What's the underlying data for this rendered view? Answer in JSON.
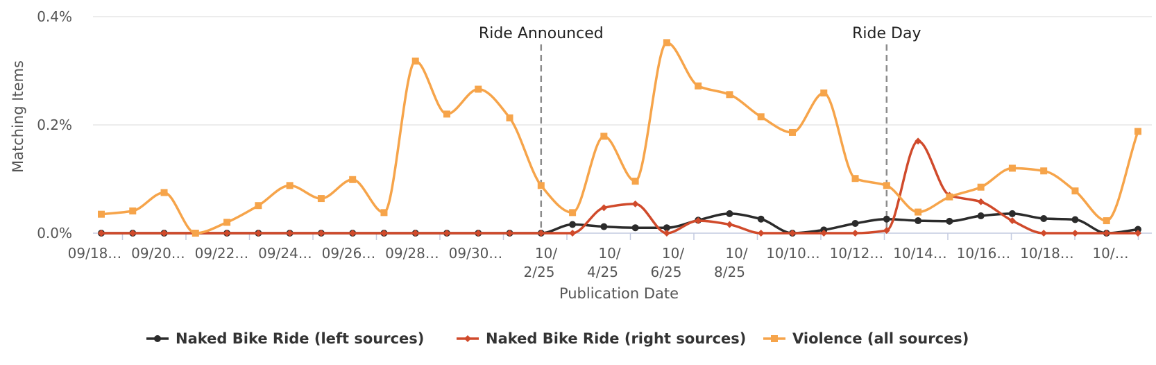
{
  "chart_data": {
    "type": "line",
    "xlabel": "Publication Date",
    "ylabel": "Matching Items",
    "ylim": [
      0,
      0.4
    ],
    "yticks": [
      "0.0%",
      "0.2%",
      "0.4%"
    ],
    "ytick_values": [
      0,
      0.2,
      0.4
    ],
    "grid": true,
    "legend_position": "bottom-center",
    "x_tick_labels": [
      "09/18…",
      "09/20…",
      "09/22…",
      "09/24…",
      "09/26…",
      "09/28…",
      "09/30…",
      "10/ 2/25",
      "10/ 4/25",
      "10/ 6/25",
      "10/ 8/25",
      "10/10…",
      "10/12…",
      "10/14…",
      "10/16…",
      "10/18…",
      "10/…"
    ],
    "x": [
      "09/17/25",
      "09/18/25",
      "09/19/25",
      "09/20/25",
      "09/21/25",
      "09/22/25",
      "09/23/25",
      "09/24/25",
      "09/25/25",
      "09/26/25",
      "09/27/25",
      "09/28/25",
      "09/29/25",
      "09/30/25",
      "10/01/25",
      "10/02/25",
      "10/03/25",
      "10/04/25",
      "10/05/25",
      "10/06/25",
      "10/07/25",
      "10/08/25",
      "10/09/25",
      "10/10/25",
      "10/11/25",
      "10/12/25",
      "10/13/25",
      "10/14/25",
      "10/15/25",
      "10/16/25",
      "10/17/25",
      "10/18/25",
      "10/19/25",
      "10/20/25"
    ],
    "events": [
      {
        "label": "Ride Announced",
        "date": "10/01/25"
      },
      {
        "label": "Ride Day",
        "date": "10/12/25"
      }
    ],
    "series": [
      {
        "name": "Naked Bike Ride (left sources)",
        "color": "#2b2b2b",
        "marker": "circle",
        "values": [
          0,
          0,
          0,
          0,
          0,
          0,
          0,
          0,
          0,
          0,
          0,
          0,
          0,
          0,
          0,
          0.016,
          0.012,
          0.01,
          0.01,
          0.024,
          0.036,
          0.026,
          0,
          0.006,
          0.018,
          0.026,
          0.023,
          0.022,
          0.032,
          0.036,
          0.027,
          0.025,
          0,
          0.007
        ]
      },
      {
        "name": "Naked Bike Ride (right sources)",
        "color": "#d04a2b",
        "marker": "diamond",
        "values": [
          0,
          0,
          0,
          0,
          0,
          0,
          0,
          0,
          0,
          0,
          0,
          0,
          0,
          0,
          0,
          0,
          0.047,
          0.054,
          0,
          0.023,
          0.016,
          0,
          0,
          0,
          0,
          0.005,
          0.17,
          0.07,
          0.058,
          0.023,
          0,
          0,
          0,
          0
        ]
      },
      {
        "name": "Violence (all sources)",
        "color": "#f6a44a",
        "marker": "square",
        "values": [
          0.035,
          0.041,
          0.075,
          0,
          0.02,
          0.051,
          0.088,
          0.064,
          0.099,
          0.038,
          0.318,
          0.22,
          0.266,
          0.213,
          0.088,
          0.038,
          0.179,
          0.096,
          0.352,
          0.272,
          0.256,
          0.215,
          0.186,
          0.259,
          0.101,
          0.088,
          0.039,
          0.067,
          0.085,
          0.12,
          0.115,
          0.078,
          0.023,
          0.188
        ]
      }
    ]
  }
}
